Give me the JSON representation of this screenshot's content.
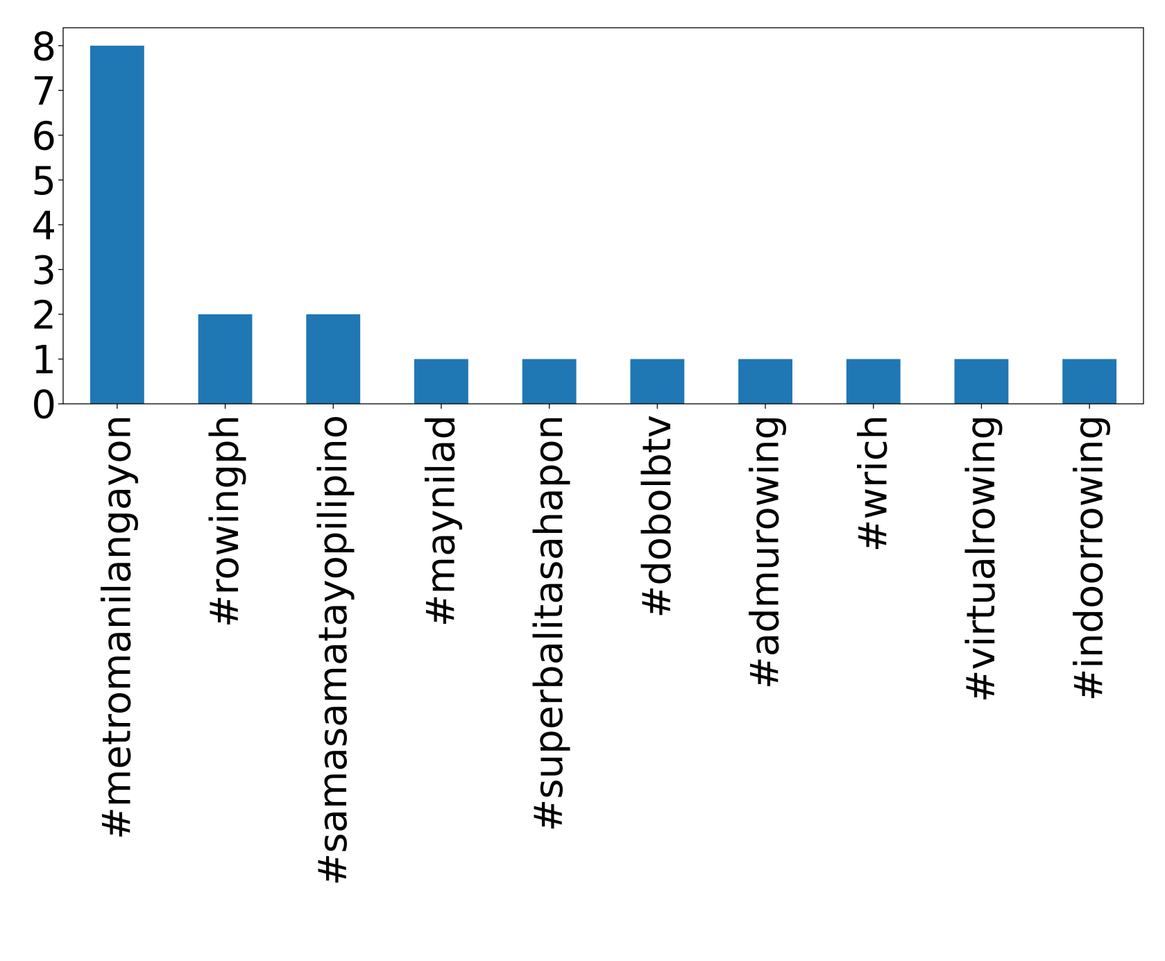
{
  "chart_data": {
    "type": "bar",
    "categories": [
      "#metromanilangayon",
      "#rowingph",
      "#samasamatayopilipino",
      "#maynilad",
      "#superbalitasahapon",
      "#dobolbtv",
      "#admurowing",
      "#wrich",
      "#virtualrowing",
      "#indoorrowing"
    ],
    "values": [
      8,
      2,
      2,
      1,
      1,
      1,
      1,
      1,
      1,
      1
    ],
    "title": "",
    "xlabel": "",
    "ylabel": "",
    "ylim": [
      0,
      8.4
    ],
    "yticks": [
      0,
      1,
      2,
      3,
      4,
      5,
      6,
      7,
      8
    ],
    "bar_color": "#1f77b4",
    "grid": false,
    "legend": "none"
  }
}
